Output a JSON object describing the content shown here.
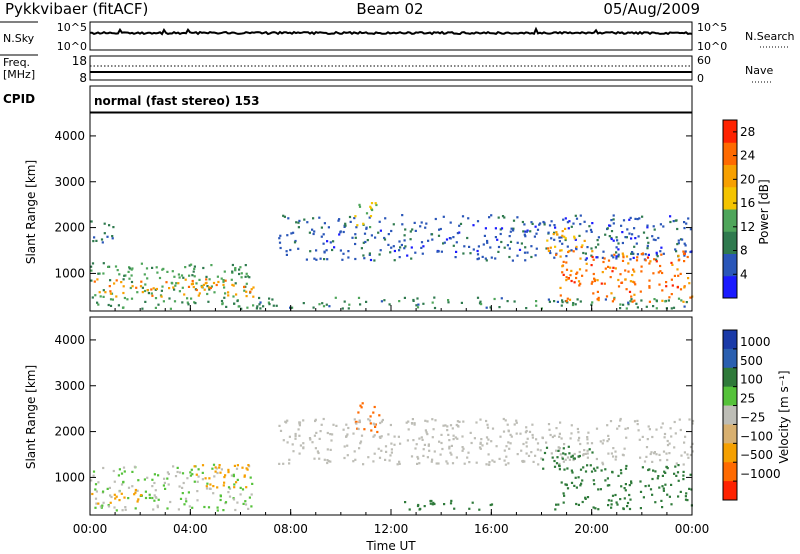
{
  "header": {
    "title": "Pykkvibaer (fitACF)",
    "beam": "Beam 02",
    "date": "05/Aug/2009"
  },
  "top_panel": {
    "left_label": "N.Sky",
    "right_label": "N.Search",
    "left_ticks": [
      "10^5",
      "10^0"
    ],
    "right_ticks": [
      "10^5",
      "10^0"
    ]
  },
  "freq_panel": {
    "left_label_line1": "Freq.",
    "left_label_line2": "[MHz]",
    "left_ticks": [
      "18",
      "8"
    ],
    "right_label": "Nave",
    "right_ticks": [
      "60",
      "0"
    ]
  },
  "cpid": {
    "label": "CPID",
    "value": "normal (fast stereo) 153"
  },
  "colors": {
    "power_scale": [
      "#1a1aff",
      "#2a56b8",
      "#2f7a4e",
      "#4ea55a",
      "#f4c400",
      "#f7a000",
      "#ff6a00",
      "#ff2200"
    ],
    "velocity_scale": [
      "#1a3aa8",
      "#2a5fb0",
      "#2f7a3a",
      "#55c23a",
      "#bdbdb6",
      "#d8b070",
      "#f5a000",
      "#ff6a00",
      "#ff2200"
    ]
  },
  "chart_data": [
    {
      "type": "heatmap",
      "name": "power",
      "xlabel": "",
      "ylabel": "Slant Range [km]",
      "xlim": [
        0,
        24
      ],
      "ylim": [
        180,
        4500
      ],
      "yticks": [
        "1000",
        "2000",
        "3000",
        "4000"
      ],
      "xticks": [
        "00:00",
        "04:00",
        "08:00",
        "12:00",
        "16:00",
        "20:00",
        "00:00"
      ],
      "colorbar": {
        "label": "Power [dB]",
        "ticks": [
          "4",
          "8",
          "12",
          "16",
          "20",
          "24",
          "28"
        ],
        "range": [
          0,
          30
        ]
      },
      "features": [
        {
          "t0": 0.0,
          "t1": 6.5,
          "r0": 250,
          "r1": 1250,
          "level": 12
        },
        {
          "t0": 0.0,
          "t1": 6.5,
          "r0": 500,
          "r1": 900,
          "level": 22
        },
        {
          "t0": 0.0,
          "t1": 1.0,
          "r0": 1700,
          "r1": 2200,
          "level": 8
        },
        {
          "t0": 6.5,
          "t1": 24.0,
          "r0": 250,
          "r1": 500,
          "level": 10
        },
        {
          "t0": 7.5,
          "t1": 24.0,
          "r0": 1300,
          "r1": 2300,
          "level": 6
        },
        {
          "t0": 10.5,
          "t1": 11.5,
          "r0": 2000,
          "r1": 2600,
          "level": 14
        },
        {
          "t0": 18.5,
          "t1": 24.0,
          "r0": 400,
          "r1": 1500,
          "level": 24
        },
        {
          "t0": 18.0,
          "t1": 20.0,
          "r0": 1500,
          "r1": 2000,
          "level": 20
        }
      ]
    },
    {
      "type": "heatmap",
      "name": "velocity",
      "xlabel": "Time UT",
      "ylabel": "Slant Range [km]",
      "xlim": [
        0,
        24
      ],
      "ylim": [
        180,
        4500
      ],
      "yticks": [
        "1000",
        "2000",
        "3000",
        "4000"
      ],
      "xticks": [
        "00:00",
        "04:00",
        "08:00",
        "12:00",
        "16:00",
        "20:00",
        "00:00"
      ],
      "colorbar": {
        "label": "Velocity [m s⁻¹]",
        "ticks": [
          "1000",
          "500",
          "100",
          "25",
          "−25",
          "−100",
          "−500",
          "−1000"
        ]
      },
      "features": [
        {
          "t0": 0.0,
          "t1": 6.5,
          "r0": 300,
          "r1": 1300,
          "level": 25
        },
        {
          "t0": 4.0,
          "t1": 6.5,
          "r0": 800,
          "r1": 1300,
          "level": -300
        },
        {
          "t0": 0.0,
          "t1": 2.0,
          "r0": 450,
          "r1": 750,
          "level": -150
        },
        {
          "t0": 10.5,
          "t1": 11.6,
          "r0": 2000,
          "r1": 2650,
          "level": -700
        },
        {
          "t0": 7.5,
          "t1": 24.0,
          "r0": 1300,
          "r1": 2300,
          "level": 0
        },
        {
          "t0": 12.5,
          "t1": 16.0,
          "r0": 300,
          "r1": 550,
          "level": 150
        },
        {
          "t0": 18.0,
          "t1": 20.0,
          "r0": 1200,
          "r1": 1700,
          "level": 150
        },
        {
          "t0": 18.5,
          "t1": 24.0,
          "r0": 300,
          "r1": 1300,
          "level": 300
        }
      ]
    }
  ]
}
